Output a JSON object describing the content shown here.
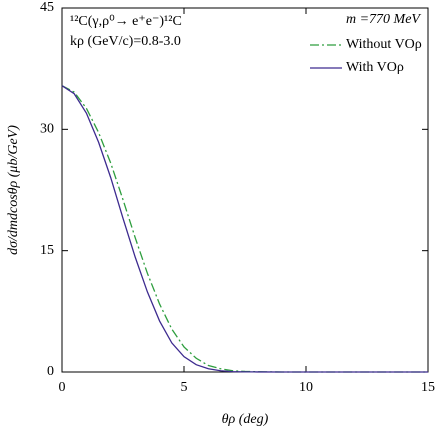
{
  "chart_data": {
    "type": "line",
    "annotations": [
      "¹²C(γ,ρ⁰→ e⁺e⁻)¹²C",
      "kρ (GeV/c)=0.8-3.0",
      "m =770 MeV"
    ],
    "xlabel": "θρ (deg)",
    "ylabel": "dσ/dmdcosθρ (μb/GeV)",
    "x": [
      0,
      0.5,
      1,
      1.5,
      2,
      2.5,
      3,
      3.5,
      4,
      4.5,
      5,
      5.5,
      6,
      6.5,
      7,
      7.5,
      8,
      9,
      10,
      12,
      15
    ],
    "series": [
      {
        "name": "Without VOρ",
        "color": "#2e9e3e",
        "dash": "dashdot",
        "values": [
          35.4,
          34.6,
          32.6,
          29.6,
          25.8,
          21.3,
          16.6,
          12.2,
          8.4,
          5.3,
          3.1,
          1.7,
          0.8,
          0.4,
          0.15,
          0.07,
          0.03,
          0,
          0,
          0,
          0
        ]
      },
      {
        "name": "With VOρ",
        "color": "#3d2b8f",
        "dash": "solid",
        "values": [
          35.4,
          34.4,
          32.0,
          28.4,
          24.0,
          19.0,
          14.2,
          9.9,
          6.3,
          3.6,
          1.9,
          0.9,
          0.4,
          0.15,
          0.05,
          0.02,
          0.01,
          0,
          0,
          0,
          0
        ]
      }
    ],
    "xlim": [
      0,
      15
    ],
    "xticks": [
      0,
      5,
      10,
      15
    ],
    "ylim": [
      0,
      45
    ],
    "yticks": [
      0,
      15,
      30,
      45
    ],
    "legend": "upper right"
  }
}
